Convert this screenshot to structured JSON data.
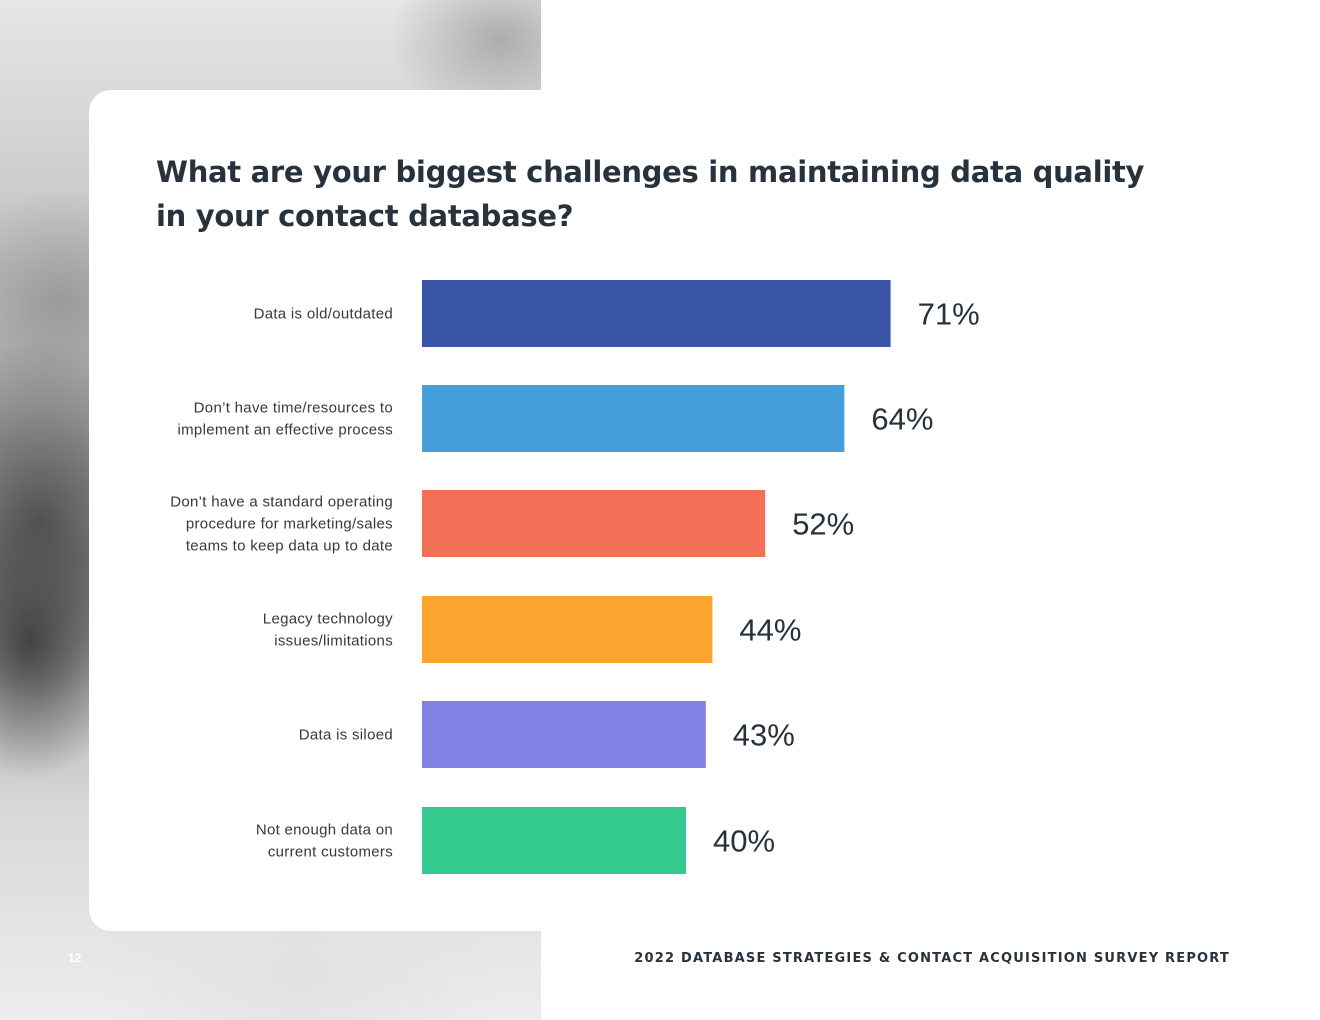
{
  "chart_data": {
    "type": "bar",
    "orientation": "horizontal",
    "title": "What are your biggest challenges in maintaining data quality in your contact database?",
    "categories": [
      [
        "Data is old/outdated"
      ],
      [
        "Don’t have time/resources to",
        "implement an effective process"
      ],
      [
        "Don’t have a standard operating",
        "procedure for marketing/sales",
        "teams to keep data up to date"
      ],
      [
        "Legacy technology",
        "issues/limitations"
      ],
      [
        "Data is siloed"
      ],
      [
        "Not enough data on",
        "current customers"
      ]
    ],
    "values": [
      71,
      64,
      52,
      44,
      43,
      40
    ],
    "value_labels": [
      "71%",
      "64%",
      "52%",
      "44%",
      "43%",
      "40%"
    ],
    "colors": [
      "#3a55a6",
      "#459fd9",
      "#f37058",
      "#fca52e",
      "#8180e3",
      "#34c98f"
    ],
    "unit": "%",
    "grid": false,
    "legend": "none"
  },
  "page": {
    "number": "12",
    "footer": "2022 DATABASE STRATEGIES & CONTACT ACQUISITION SURVEY REPORT"
  }
}
